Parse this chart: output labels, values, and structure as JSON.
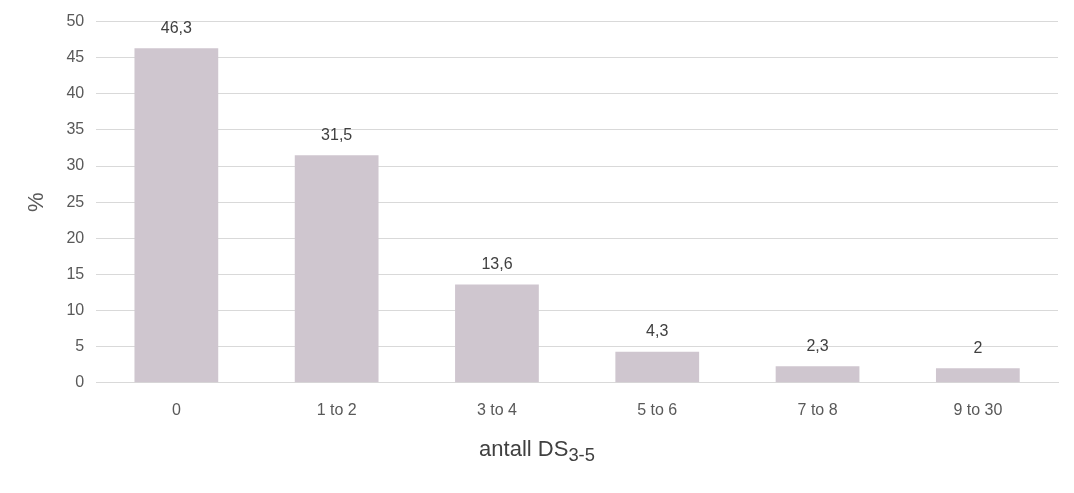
{
  "chart_data": {
    "type": "bar",
    "xlabel": "antall DS$_{3-5}$",
    "ylabel": "%",
    "categories": [
      "0",
      "1 to 2",
      "3 to 4",
      "5 to 6",
      "7 to 8",
      "9 to 30"
    ],
    "values": [
      46.3,
      31.5,
      13.6,
      4.3,
      2.3,
      2
    ],
    "value_labels": [
      "46,3",
      "31,5",
      "13,6",
      "4,3",
      "2,3",
      "2"
    ],
    "color": "#cfc6cf",
    "ylim": [
      0,
      50
    ],
    "yticks": [
      0,
      5,
      10,
      15,
      20,
      25,
      30,
      35,
      40,
      45,
      50
    ],
    "grid": "y",
    "legend": false
  }
}
